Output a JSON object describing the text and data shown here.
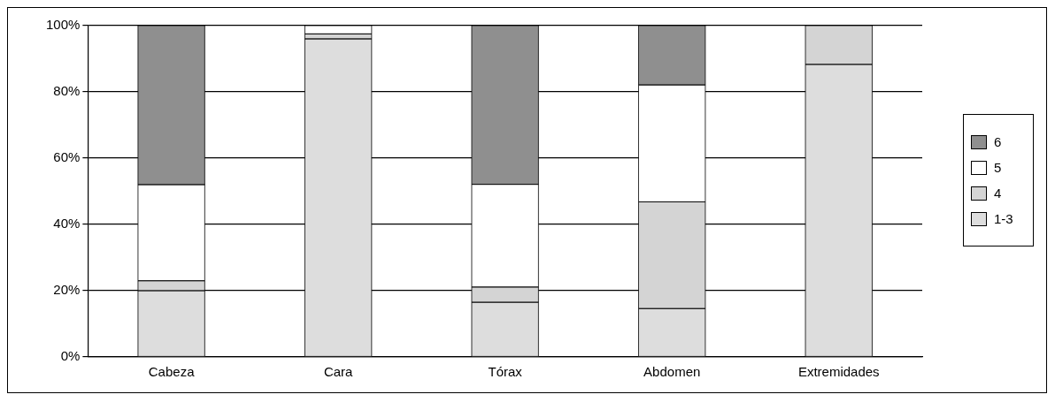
{
  "chart_data": {
    "type": "bar",
    "stacked": true,
    "categories": [
      "Cabeza",
      "Cara",
      "Tórax",
      "Abdomen",
      "Extremidades"
    ],
    "series": [
      {
        "name": "1-3",
        "color": "#dddddd",
        "values": [
          20,
          96,
          16.5,
          14.6,
          88.3
        ]
      },
      {
        "name": "4",
        "color": "#d4d4d4",
        "values": [
          3,
          1.5,
          4.6,
          32.2,
          11.7
        ]
      },
      {
        "name": "5",
        "color": "#ffffff",
        "values": [
          29,
          2.5,
          31,
          35.3,
          0
        ]
      },
      {
        "name": "6",
        "color": "#8f8f8f",
        "values": [
          48,
          0,
          47.9,
          17.9,
          0
        ]
      }
    ],
    "ylim": [
      0,
      100
    ],
    "yticks": [
      {
        "value": 0,
        "label": "0%"
      },
      {
        "value": 20,
        "label": "20%"
      },
      {
        "value": 40,
        "label": "40%"
      },
      {
        "value": 60,
        "label": "60%"
      },
      {
        "value": 80,
        "label": "80%"
      },
      {
        "value": 100,
        "label": "100%"
      }
    ],
    "grid": "y",
    "legend": "right"
  }
}
